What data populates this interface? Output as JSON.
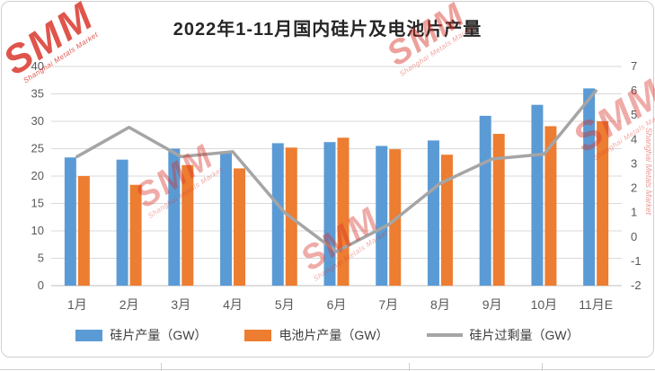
{
  "chart": {
    "title": "2022年1-11月国内硅片及电池片产量"
  },
  "watermark": {
    "text": "SMM",
    "subtext": "Shanghai Metals Market",
    "color": "#d93025"
  },
  "chart_data": {
    "type": "combo-bar-line",
    "title": "2022年1-11月国内硅片及电池片产量",
    "categories": [
      "1月",
      "2月",
      "3月",
      "4月",
      "5月",
      "6月",
      "7月",
      "8月",
      "9月",
      "10月",
      "11月E"
    ],
    "series": [
      {
        "name": "硅片产量（GW）",
        "type": "bar",
        "axis": "left",
        "color": "#5B9BD5",
        "values": [
          23.4,
          23.0,
          25.0,
          24.5,
          26.0,
          26.2,
          25.5,
          26.5,
          31.0,
          33.0,
          36.0
        ]
      },
      {
        "name": "电池片产量（GW）",
        "type": "bar",
        "axis": "left",
        "color": "#ED7D31",
        "values": [
          20.0,
          18.4,
          22.0,
          21.4,
          25.2,
          27.0,
          24.9,
          23.9,
          27.7,
          29.1,
          30.0
        ]
      },
      {
        "name": "硅片过剩量（GW）",
        "type": "line",
        "axis": "right",
        "color": "#A5A5A5",
        "values": [
          3.3,
          4.5,
          3.3,
          3.5,
          1.0,
          -0.6,
          0.5,
          2.2,
          3.2,
          3.4,
          6.0
        ]
      }
    ],
    "y_left": {
      "min": 0,
      "max": 40,
      "ticks": [
        0,
        5,
        10,
        15,
        20,
        25,
        30,
        35,
        40
      ]
    },
    "y_right": {
      "min": -2,
      "max": 7,
      "ticks": [
        -2,
        -1,
        0,
        1,
        2,
        3,
        4,
        5,
        6,
        7
      ]
    },
    "grid": true,
    "grid_color": "#d9d9d9",
    "axis_line_color": "#bfbfbf",
    "legend_position": "bottom",
    "xlabel": "",
    "ylabel": ""
  }
}
